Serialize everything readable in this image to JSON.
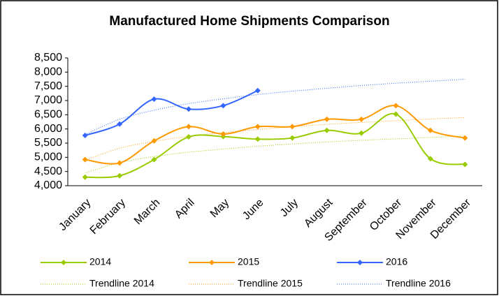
{
  "chart_data": {
    "type": "line",
    "title": "Manufactured Home Shipments Comparison",
    "categories": [
      "January",
      "February",
      "March",
      "April",
      "May",
      "June",
      "July",
      "August",
      "September",
      "October",
      "November",
      "December"
    ],
    "ylim": [
      4000,
      8500
    ],
    "yticks": [
      {
        "value": 4000,
        "label": "4,000"
      },
      {
        "value": 4500,
        "label": "4,500"
      },
      {
        "value": 5000,
        "label": "5,000"
      },
      {
        "value": 5500,
        "label": "5,500"
      },
      {
        "value": 6000,
        "label": "6,000"
      },
      {
        "value": 6500,
        "label": "6,500"
      },
      {
        "value": 7000,
        "label": "7,000"
      },
      {
        "value": 7500,
        "label": "7,500"
      },
      {
        "value": 8000,
        "label": "8,000"
      },
      {
        "value": 8500,
        "label": "8,500"
      }
    ],
    "grid": false,
    "series": [
      {
        "name": "2014",
        "color": "#99cc00",
        "values": [
          4300,
          4350,
          4920,
          5720,
          5730,
          5640,
          5680,
          5950,
          5850,
          6520,
          4950,
          4750
        ]
      },
      {
        "name": "2015",
        "color": "#ff9900",
        "values": [
          4920,
          4800,
          5580,
          6080,
          5820,
          6080,
          6080,
          6340,
          6340,
          6820,
          5950,
          5680
        ]
      },
      {
        "name": "2016",
        "color": "#3366ff",
        "values": [
          5770,
          6170,
          7050,
          6700,
          6820,
          7350,
          null,
          null,
          null,
          null,
          null,
          null
        ]
      }
    ],
    "trendlines": [
      {
        "name": "Trendline 2014",
        "color": "#99cc00",
        "values": [
          4450,
          4810,
          5030,
          5180,
          5290,
          5390,
          5470,
          5540,
          5600,
          5650,
          5700,
          5750
        ]
      },
      {
        "name": "Trendline 2015",
        "color": "#ff9900",
        "values": [
          4900,
          5320,
          5560,
          5740,
          5870,
          5980,
          6080,
          6160,
          6230,
          6290,
          6350,
          6400
        ]
      },
      {
        "name": "Trendline 2016",
        "color": "#3366ff",
        "values": [
          5800,
          6340,
          6660,
          6890,
          7060,
          7210,
          7330,
          7430,
          7530,
          7610,
          7680,
          7750
        ]
      }
    ]
  }
}
